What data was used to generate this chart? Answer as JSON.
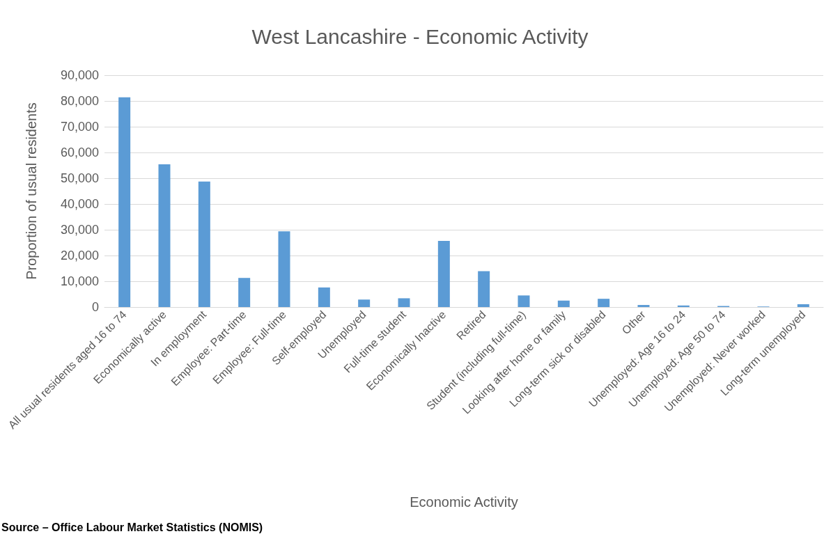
{
  "chart_data": {
    "type": "bar",
    "title": "West Lancashire - Economic Activity",
    "xlabel": "Economic Activity",
    "ylabel": "Proportion of usual residents",
    "categories": [
      "All usual residents aged 16 to 74",
      "Economically active",
      "In employment",
      "Employee: Part-time",
      "Employee: Full-time",
      "Self-employed",
      "Unemployed",
      "Full-time student",
      "Economically Inactive",
      "Retired",
      "Student (including full-time)",
      "Looking after home or family",
      "Long-term sick or disabled",
      "Other",
      "Unemployed: Age 16 to 24",
      "Unemployed: Age 50 to 74",
      "Unemployed: Never worked",
      "Long-term unemployed"
    ],
    "values": [
      81400,
      55400,
      48700,
      11300,
      29400,
      7600,
      2900,
      3400,
      25700,
      13900,
      4500,
      2500,
      3200,
      800,
      600,
      400,
      200,
      1100
    ],
    "color": "#5b9bd5",
    "ylim": [
      0,
      90000
    ],
    "yticks": [
      0,
      {
        "value": 10000,
        "label": "10,000"
      },
      {
        "value": 20000,
        "label": "20,000"
      },
      {
        "value": 30000,
        "label": "30,000"
      },
      {
        "value": 40000,
        "label": "40,000"
      },
      {
        "value": 50000,
        "label": "50,000"
      },
      {
        "value": 60000,
        "label": "60,000"
      },
      {
        "value": 70000,
        "label": "70,000"
      },
      {
        "value": 80000,
        "label": "80,000"
      },
      {
        "value": 90000,
        "label": "90,000"
      }
    ],
    "grid": "y",
    "annotations": [
      "Source – Office Labour Market Statistics (NOMIS)"
    ]
  }
}
